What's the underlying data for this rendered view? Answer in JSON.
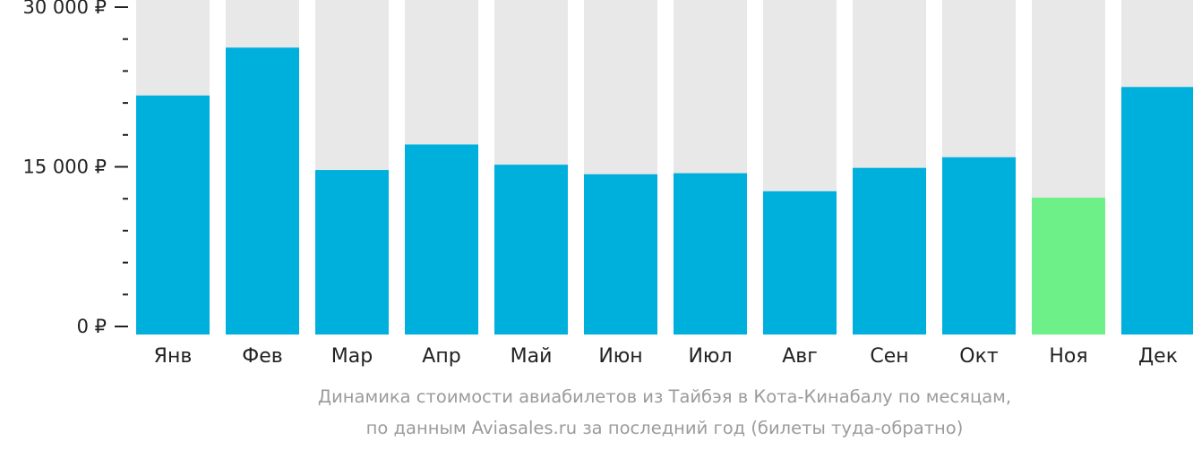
{
  "chart_data": {
    "type": "bar",
    "categories": [
      "Янв",
      "Фев",
      "Мар",
      "Апр",
      "Май",
      "Июн",
      "Июл",
      "Авг",
      "Сен",
      "Окт",
      "Ноя",
      "Дек"
    ],
    "values": [
      21700,
      26200,
      14700,
      17100,
      15200,
      14300,
      14400,
      12700,
      14900,
      15900,
      12100,
      22500
    ],
    "ylim": [
      0,
      30000
    ],
    "yticks": [
      {
        "value": 0,
        "label": "0 ₽"
      },
      {
        "value": 15000,
        "label": "15 000 ₽"
      },
      {
        "value": 30000,
        "label": "30 000 ₽"
      }
    ],
    "minor_tick_step": 3000,
    "highlight_index": 10,
    "colors": {
      "bar": "#00b0dc",
      "highlight": "#6cf087",
      "track": "#e8e8e8",
      "axis": "#222222"
    },
    "grid": false,
    "legend": "none"
  },
  "caption": {
    "line1": "Динамика стоимости авиабилетов из Тайбэя в Кота-Кинабалу по месяцам,",
    "line2": "по данным Aviasales.ru за последний год (билеты туда-обратно)"
  }
}
